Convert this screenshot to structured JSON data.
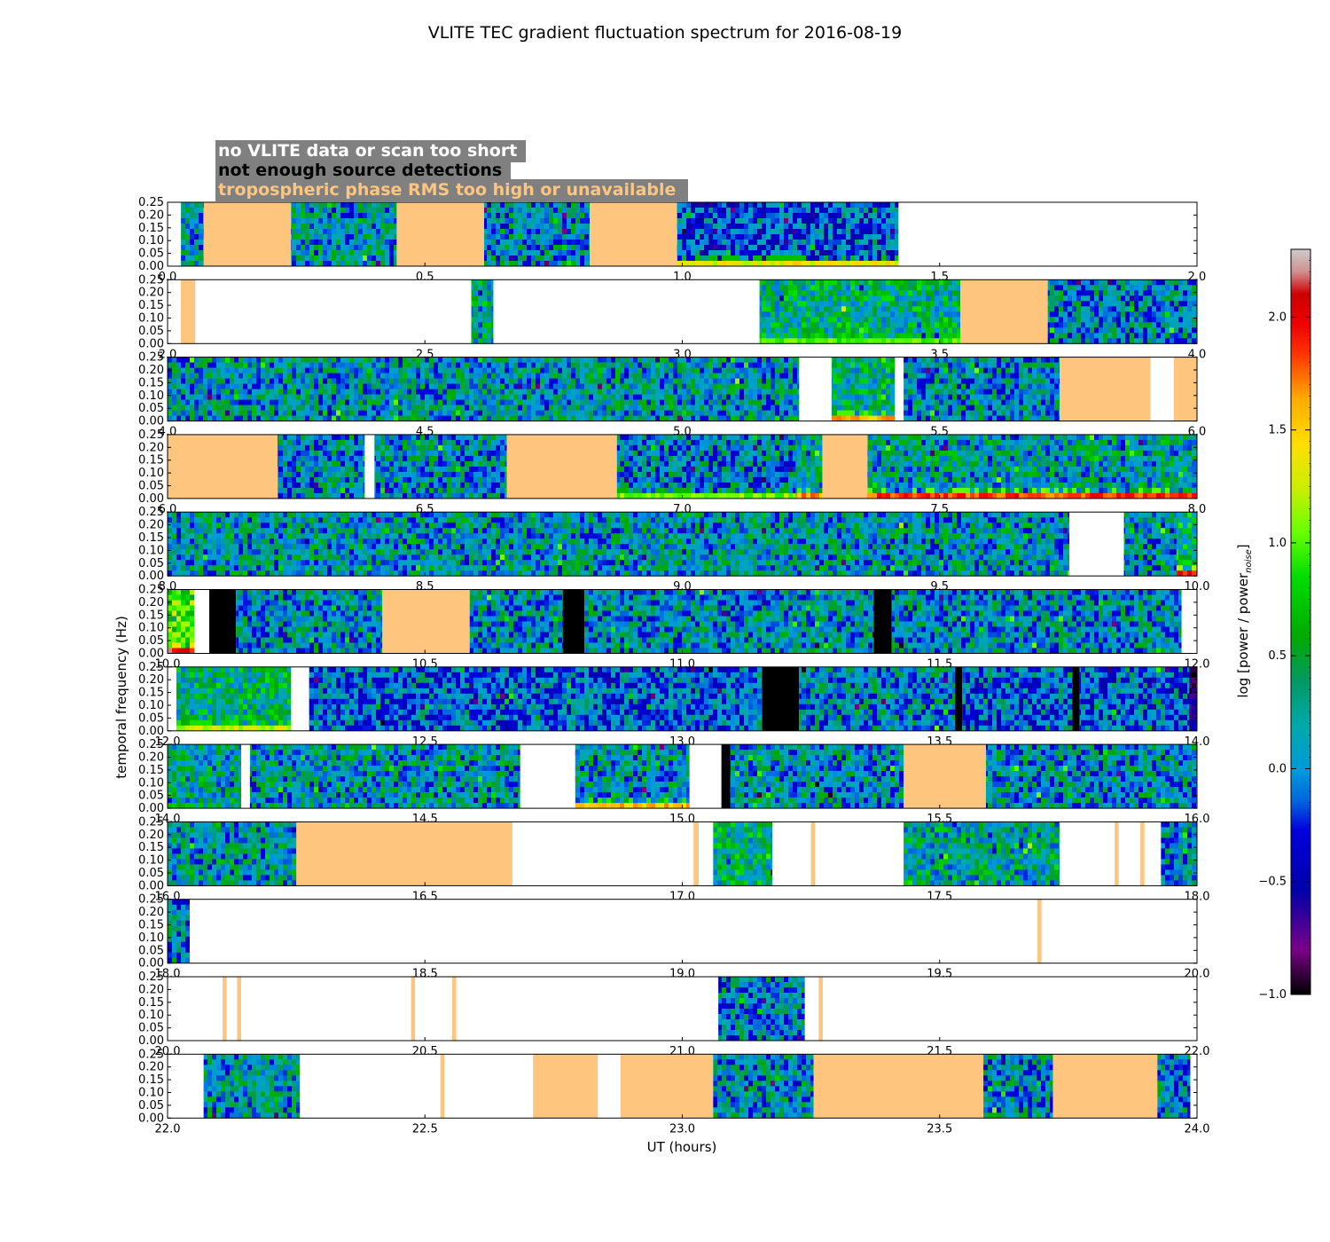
{
  "chart_data": {
    "type": "heatmap",
    "title": "VLITE TEC gradient fluctuation spectrum for 2016-08-19",
    "xlabel": "UT (hours)",
    "ylabel": "temporal frequency (Hz)",
    "colorbar_label": "log [power / power",
    "colorbar_label_sub": "noise",
    "colorbar_label_end": "]",
    "colorbar_ticks": [
      "2.0",
      "1.5",
      "1.0",
      "0.5",
      "0.0",
      "−0.5",
      "−1.0"
    ],
    "colorbar_range": [
      -1.0,
      2.3
    ],
    "y_ticks": [
      "0.25",
      "0.20",
      "0.15",
      "0.10",
      "0.05",
      "0.00"
    ],
    "ylim": [
      0,
      0.25
    ],
    "colors": {
      "no_data": "#ffffff",
      "few_detections": "#000000",
      "tropo_rms": "#fdc57d",
      "legend_box": "#808080",
      "legend_text_no_data": "#ffffff",
      "legend_text_few": "#000000",
      "legend_text_tropo": "#fdc57d"
    },
    "legend": [
      {
        "label": "no VLITE data or scan too short",
        "category": "no_data"
      },
      {
        "label": "not enough source detections",
        "category": "few_detections"
      },
      {
        "label": "tropospheric phase RMS too high or unavailable",
        "category": "tropo_rms"
      }
    ],
    "panels": [
      {
        "x_ticks": [
          "0.0",
          "0.5",
          "1.0",
          "1.5",
          "2.0"
        ],
        "xlim": [
          0,
          2
        ],
        "segments": [
          {
            "start": 0.0,
            "end": 0.026,
            "type": "none"
          },
          {
            "start": 0.026,
            "end": 0.07,
            "type": "data",
            "level": 0.1
          },
          {
            "start": 0.07,
            "end": 0.24,
            "type": "tropo"
          },
          {
            "start": 0.24,
            "end": 0.445,
            "type": "data",
            "level": 0.1
          },
          {
            "start": 0.445,
            "end": 0.615,
            "type": "tropo"
          },
          {
            "start": 0.615,
            "end": 0.82,
            "type": "data",
            "level": 0.05
          },
          {
            "start": 0.82,
            "end": 0.99,
            "type": "tropo"
          },
          {
            "start": 0.99,
            "end": 1.42,
            "type": "data",
            "level": -0.2,
            "low_band": 1.3
          },
          {
            "start": 1.42,
            "end": 2.0,
            "type": "none"
          }
        ]
      },
      {
        "x_ticks": [
          "2.0",
          "2.5",
          "3.0",
          "3.5",
          "4.0"
        ],
        "xlim": [
          2,
          4
        ],
        "segments": [
          {
            "start": 2.0,
            "end": 2.026,
            "type": "none"
          },
          {
            "start": 2.026,
            "end": 2.054,
            "type": "tropo"
          },
          {
            "start": 2.054,
            "end": 2.59,
            "type": "none"
          },
          {
            "start": 2.59,
            "end": 2.633,
            "type": "data",
            "level": 0.2
          },
          {
            "start": 2.633,
            "end": 3.15,
            "type": "none"
          },
          {
            "start": 3.15,
            "end": 3.54,
            "type": "data",
            "level": 0.3,
            "low_band": 0.9
          },
          {
            "start": 3.54,
            "end": 3.71,
            "type": "tropo"
          },
          {
            "start": 3.71,
            "end": 4.0,
            "type": "data",
            "level": 0.0
          }
        ]
      },
      {
        "x_ticks": [
          "4.0",
          "4.5",
          "5.0",
          "5.5",
          "6.0"
        ],
        "xlim": [
          4,
          6
        ],
        "segments": [
          {
            "start": 4.0,
            "end": 5.227,
            "type": "data",
            "level": 0.1
          },
          {
            "start": 5.227,
            "end": 5.29,
            "type": "none"
          },
          {
            "start": 5.29,
            "end": 5.413,
            "type": "data",
            "level": 0.3,
            "low_band": 1.5
          },
          {
            "start": 5.413,
            "end": 5.43,
            "type": "none"
          },
          {
            "start": 5.43,
            "end": 5.733,
            "type": "data",
            "level": 0.05
          },
          {
            "start": 5.733,
            "end": 5.91,
            "type": "tropo"
          },
          {
            "start": 5.91,
            "end": 5.955,
            "type": "none"
          },
          {
            "start": 5.955,
            "end": 6.0,
            "type": "tropo"
          }
        ]
      },
      {
        "x_ticks": [
          "6.0",
          "6.5",
          "7.0",
          "7.5",
          "8.0"
        ],
        "xlim": [
          6,
          8
        ],
        "segments": [
          {
            "start": 6.0,
            "end": 6.214,
            "type": "tropo"
          },
          {
            "start": 6.214,
            "end": 6.383,
            "type": "data",
            "level": 0.05
          },
          {
            "start": 6.383,
            "end": 6.402,
            "type": "none"
          },
          {
            "start": 6.402,
            "end": 6.659,
            "type": "data",
            "level": 0.05
          },
          {
            "start": 6.659,
            "end": 6.873,
            "type": "tropo"
          },
          {
            "start": 6.873,
            "end": 7.22,
            "type": "data",
            "level": 0.0,
            "low_band": 1.0
          },
          {
            "start": 7.22,
            "end": 7.272,
            "type": "data",
            "level": 0.2,
            "low_band": 1.6
          },
          {
            "start": 7.272,
            "end": 7.36,
            "type": "tropo"
          },
          {
            "start": 7.36,
            "end": 8.0,
            "type": "data",
            "level": 0.15,
            "low_band": 1.8
          }
        ]
      },
      {
        "x_ticks": [
          "8.0",
          "8.5",
          "9.0",
          "9.5",
          "10.0"
        ],
        "xlim": [
          8,
          10
        ],
        "segments": [
          {
            "start": 8.0,
            "end": 9.752,
            "type": "data",
            "level": 0.1
          },
          {
            "start": 9.752,
            "end": 9.858,
            "type": "none"
          },
          {
            "start": 9.858,
            "end": 9.96,
            "type": "data",
            "level": 0.05
          },
          {
            "start": 9.96,
            "end": 10.0,
            "type": "data",
            "level": 0.4,
            "low_band": 1.9
          }
        ]
      },
      {
        "x_ticks": [
          "10.0",
          "10.5",
          "11.0",
          "11.5",
          "12.0"
        ],
        "xlim": [
          10,
          12
        ],
        "segments": [
          {
            "start": 10.0,
            "end": 10.052,
            "type": "data",
            "level": 0.8,
            "low_band": 2.0
          },
          {
            "start": 10.052,
            "end": 10.081,
            "type": "none"
          },
          {
            "start": 10.081,
            "end": 10.133,
            "type": "black"
          },
          {
            "start": 10.133,
            "end": 10.417,
            "type": "data",
            "level": 0.05
          },
          {
            "start": 10.417,
            "end": 10.587,
            "type": "tropo"
          },
          {
            "start": 10.587,
            "end": 10.768,
            "type": "data",
            "level": 0.05
          },
          {
            "start": 10.768,
            "end": 10.81,
            "type": "black"
          },
          {
            "start": 10.81,
            "end": 11.372,
            "type": "data",
            "level": 0.05
          },
          {
            "start": 11.372,
            "end": 11.407,
            "type": "black"
          },
          {
            "start": 11.407,
            "end": 11.97,
            "type": "data",
            "level": 0.05
          },
          {
            "start": 11.97,
            "end": 12.0,
            "type": "none"
          }
        ]
      },
      {
        "x_ticks": [
          "12.0",
          "12.5",
          "13.0",
          "13.5",
          "14.0"
        ],
        "xlim": [
          12,
          14
        ],
        "segments": [
          {
            "start": 12.0,
            "end": 12.017,
            "type": "none"
          },
          {
            "start": 12.017,
            "end": 12.24,
            "type": "data",
            "level": 0.3,
            "low_band": 1.2
          },
          {
            "start": 12.24,
            "end": 12.275,
            "type": "none"
          },
          {
            "start": 12.275,
            "end": 13.155,
            "type": "data",
            "level": -0.1
          },
          {
            "start": 13.155,
            "end": 13.227,
            "type": "black"
          },
          {
            "start": 13.227,
            "end": 13.53,
            "type": "data",
            "level": 0.0
          },
          {
            "start": 13.53,
            "end": 13.544,
            "type": "black"
          },
          {
            "start": 13.544,
            "end": 13.758,
            "type": "data",
            "level": -0.1
          },
          {
            "start": 13.758,
            "end": 13.772,
            "type": "black"
          },
          {
            "start": 13.772,
            "end": 13.985,
            "type": "data",
            "level": -0.1
          },
          {
            "start": 13.985,
            "end": 14.0,
            "type": "data",
            "level": -0.6
          }
        ]
      },
      {
        "x_ticks": [
          "14.0",
          "14.5",
          "15.0",
          "15.5",
          "16.0"
        ],
        "xlim": [
          14,
          16
        ],
        "segments": [
          {
            "start": 14.0,
            "end": 14.143,
            "type": "data",
            "level": 0.2
          },
          {
            "start": 14.143,
            "end": 14.16,
            "type": "none"
          },
          {
            "start": 14.16,
            "end": 14.685,
            "type": "data",
            "level": 0.1
          },
          {
            "start": 14.685,
            "end": 14.792,
            "type": "none"
          },
          {
            "start": 14.792,
            "end": 15.014,
            "type": "data",
            "level": 0.1,
            "low_band": 1.5
          },
          {
            "start": 15.014,
            "end": 15.076,
            "type": "none"
          },
          {
            "start": 15.076,
            "end": 15.093,
            "type": "black"
          },
          {
            "start": 15.093,
            "end": 15.43,
            "type": "data",
            "level": 0.05
          },
          {
            "start": 15.43,
            "end": 15.59,
            "type": "tropo"
          },
          {
            "start": 15.59,
            "end": 16.0,
            "type": "data",
            "level": 0.05
          }
        ]
      },
      {
        "x_ticks": [
          "16.0",
          "16.5",
          "17.0",
          "17.5",
          "18.0"
        ],
        "xlim": [
          16,
          18
        ],
        "segments": [
          {
            "start": 16.0,
            "end": 16.25,
            "type": "data",
            "level": 0.1
          },
          {
            "start": 16.25,
            "end": 16.67,
            "type": "tropo"
          },
          {
            "start": 16.67,
            "end": 17.022,
            "type": "none"
          },
          {
            "start": 17.022,
            "end": 17.032,
            "type": "tropo"
          },
          {
            "start": 17.032,
            "end": 17.06,
            "type": "none"
          },
          {
            "start": 17.06,
            "end": 17.175,
            "type": "data",
            "level": 0.3
          },
          {
            "start": 17.175,
            "end": 17.25,
            "type": "none"
          },
          {
            "start": 17.25,
            "end": 17.258,
            "type": "tropo"
          },
          {
            "start": 17.258,
            "end": 17.43,
            "type": "none"
          },
          {
            "start": 17.43,
            "end": 17.733,
            "type": "data",
            "level": 0.2
          },
          {
            "start": 17.733,
            "end": 17.84,
            "type": "none"
          },
          {
            "start": 17.84,
            "end": 17.848,
            "type": "tropo"
          },
          {
            "start": 17.848,
            "end": 17.89,
            "type": "none"
          },
          {
            "start": 17.89,
            "end": 17.898,
            "type": "tropo"
          },
          {
            "start": 17.898,
            "end": 17.93,
            "type": "none"
          },
          {
            "start": 17.93,
            "end": 18.0,
            "type": "data",
            "level": 0.0
          }
        ]
      },
      {
        "x_ticks": [
          "18.0",
          "18.5",
          "19.0",
          "19.5",
          "20.0"
        ],
        "xlim": [
          18,
          20
        ],
        "segments": [
          {
            "start": 18.0,
            "end": 18.043,
            "type": "data",
            "level": 0.0
          },
          {
            "start": 18.043,
            "end": 19.69,
            "type": "none"
          },
          {
            "start": 19.69,
            "end": 19.698,
            "type": "tropo"
          },
          {
            "start": 19.698,
            "end": 20.0,
            "type": "none"
          }
        ]
      },
      {
        "x_ticks": [
          "20.0",
          "20.5",
          "21.0",
          "21.5",
          "22.0"
        ],
        "xlim": [
          20,
          22
        ],
        "segments": [
          {
            "start": 20.0,
            "end": 20.107,
            "type": "none"
          },
          {
            "start": 20.107,
            "end": 20.115,
            "type": "tropo"
          },
          {
            "start": 20.115,
            "end": 20.135,
            "type": "none"
          },
          {
            "start": 20.135,
            "end": 20.143,
            "type": "tropo"
          },
          {
            "start": 20.143,
            "end": 20.473,
            "type": "none"
          },
          {
            "start": 20.473,
            "end": 20.481,
            "type": "tropo"
          },
          {
            "start": 20.481,
            "end": 20.553,
            "type": "none"
          },
          {
            "start": 20.553,
            "end": 20.561,
            "type": "tropo"
          },
          {
            "start": 20.561,
            "end": 21.07,
            "type": "none"
          },
          {
            "start": 21.07,
            "end": 21.238,
            "type": "data",
            "level": 0.0
          },
          {
            "start": 21.238,
            "end": 21.265,
            "type": "none"
          },
          {
            "start": 21.265,
            "end": 21.273,
            "type": "tropo"
          },
          {
            "start": 21.273,
            "end": 22.0,
            "type": "none"
          }
        ]
      },
      {
        "x_ticks": [
          "22.0",
          "22.5",
          "23.0",
          "23.5",
          "24.0"
        ],
        "xlim": [
          22,
          24
        ],
        "segments": [
          {
            "start": 22.0,
            "end": 22.07,
            "type": "none"
          },
          {
            "start": 22.07,
            "end": 22.257,
            "type": "data",
            "level": 0.1
          },
          {
            "start": 22.257,
            "end": 22.53,
            "type": "none"
          },
          {
            "start": 22.53,
            "end": 22.538,
            "type": "tropo"
          },
          {
            "start": 22.538,
            "end": 22.71,
            "type": "none"
          },
          {
            "start": 22.71,
            "end": 22.836,
            "type": "tropo"
          },
          {
            "start": 22.836,
            "end": 22.88,
            "type": "none"
          },
          {
            "start": 22.88,
            "end": 23.06,
            "type": "tropo"
          },
          {
            "start": 23.06,
            "end": 23.255,
            "type": "data",
            "level": 0.05
          },
          {
            "start": 23.255,
            "end": 23.585,
            "type": "tropo"
          },
          {
            "start": 23.585,
            "end": 23.72,
            "type": "data",
            "level": 0.05
          },
          {
            "start": 23.72,
            "end": 23.923,
            "type": "tropo"
          },
          {
            "start": 23.923,
            "end": 23.987,
            "type": "data",
            "level": 0.0
          },
          {
            "start": 23.987,
            "end": 24.0,
            "type": "none"
          }
        ]
      }
    ]
  }
}
